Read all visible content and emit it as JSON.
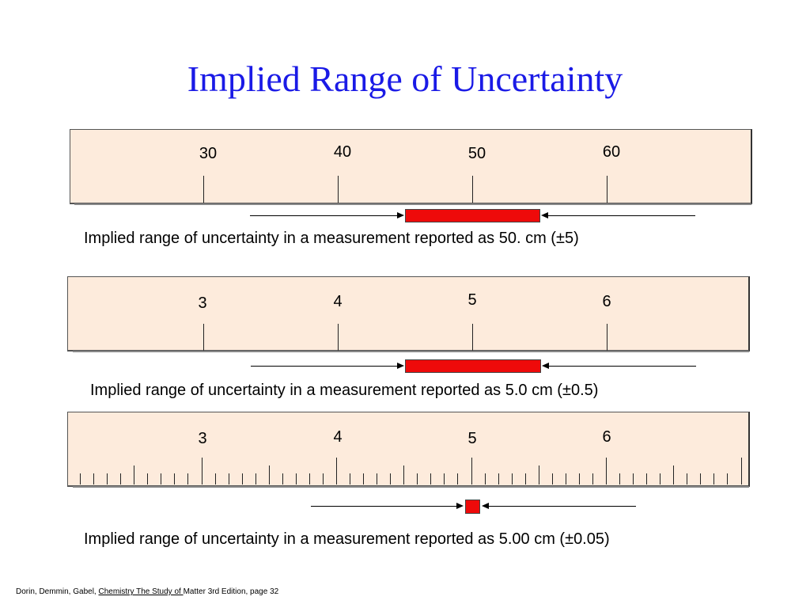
{
  "title": "Implied Range of Uncertainty",
  "rulers": [
    {
      "labels": [
        "30",
        "40",
        "50",
        "60"
      ],
      "caption": "Implied range of uncertainty in a measurement reported as 50. cm (±5)",
      "bar_color": "#ee0a0a"
    },
    {
      "labels": [
        "3",
        "4",
        "5",
        "6"
      ],
      "caption": "Implied range of uncertainty in a measurement reported as 5.0 cm (±0.5)",
      "bar_color": "#ee0a0a"
    },
    {
      "labels": [
        "3",
        "4",
        "5",
        "6"
      ],
      "caption": "Implied range of uncertainty in a measurement reported as 5.00 cm (±0.05)",
      "bar_color": "#ee0a0a"
    }
  ],
  "footer": {
    "authors": "Dorin, Demmin, Gabel, ",
    "book_underlined": "Chemistry The Study of ",
    "rest": "Matter 3rd Edition, page 32"
  }
}
